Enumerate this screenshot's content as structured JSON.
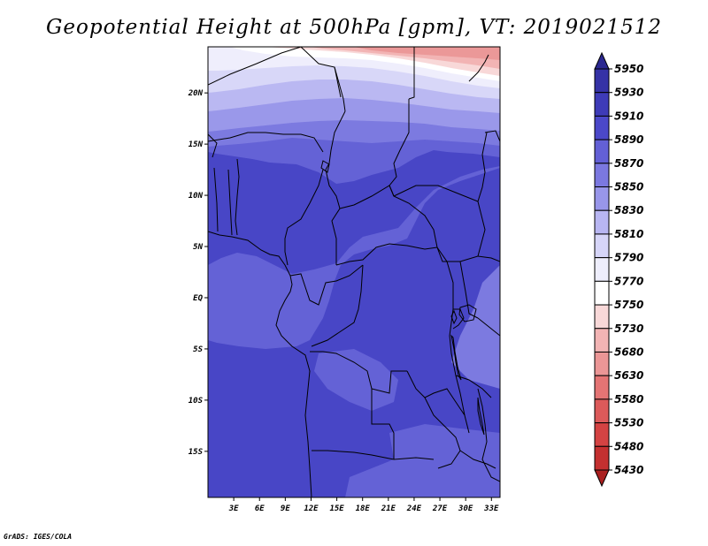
{
  "title": "Geopotential Height at 500hPa [gpm], VT: 2019021512",
  "credit": "GrADS: IGES/COLA",
  "map": {
    "region": "Central Africa",
    "lat_range": [
      -19.5,
      24.5
    ],
    "lon_range": [
      0,
      34
    ],
    "lat_labels": [
      "20N",
      "15N",
      "10N",
      "5N",
      "EQ",
      "5S",
      "10S",
      "15S"
    ],
    "lat_values": [
      20,
      15,
      10,
      5,
      0,
      -5,
      -10,
      -15
    ],
    "lon_labels": [
      "3E",
      "6E",
      "9E",
      "12E",
      "15E",
      "18E",
      "21E",
      "24E",
      "27E",
      "30E",
      "33E"
    ],
    "lon_values": [
      3,
      6,
      9,
      12,
      15,
      18,
      21,
      24,
      27,
      30,
      33
    ]
  },
  "colorbar": {
    "levels": [
      "5950",
      "5930",
      "5910",
      "5890",
      "5870",
      "5850",
      "5830",
      "5810",
      "5790",
      "5770",
      "5750",
      "5730",
      "5680",
      "5630",
      "5580",
      "5530",
      "5480",
      "5430"
    ],
    "colors": [
      "#2b2891",
      "#3532a6",
      "#3e3bb8",
      "#4b48c9",
      "#6360d6",
      "#7b78e0",
      "#9896ea",
      "#b8b6f2",
      "#d6d5f8",
      "#eeeefc",
      "#ffffff",
      "#f8d8d8",
      "#f2b4b4",
      "#eb9696",
      "#e47474",
      "#dc5a5a",
      "#d44343",
      "#c43030",
      "#aa2020"
    ]
  }
}
